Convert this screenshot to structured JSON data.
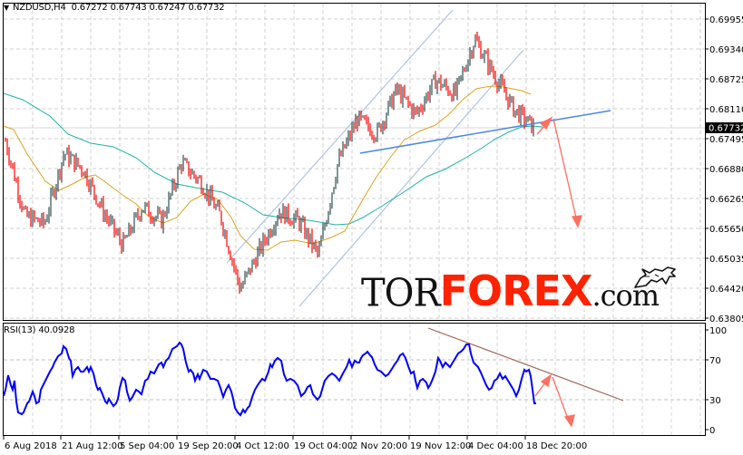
{
  "header": {
    "symbol": "NZDUSD,H4",
    "open": "0.67272",
    "high": "0.67743",
    "low": "0.67247",
    "close": "0.67732"
  },
  "rsi_header": "RSI(13) 40.0928",
  "logo": {
    "tor": "TOR",
    "forex": "FOREX",
    "com": ".com"
  },
  "colors": {
    "bull_candle": "#2f4f4f",
    "bear_candle": "#ff0000",
    "ma_fast": "#daa520",
    "ma_slow": "#20b2aa",
    "channel": "#b0c4de",
    "support_line": "#4a86e8",
    "forecast_arrow": "#ff6f61",
    "rsi_line": "#0000ff",
    "rsi_trendline": "#a0645a",
    "grid": "#c8c8c8",
    "price_tag_bg": "#000000",
    "price_tag_fg": "#ffffff"
  },
  "chart_data": [
    {
      "type": "line",
      "title": "NZDUSD,H4 0.67272 0.67743 0.67247 0.67732",
      "subtype": "candlestick",
      "xlabel": "",
      "ylabel": "",
      "x_ticks": [
        "6 Aug 2018",
        "21 Aug 12:00",
        "5 Sep 04:00",
        "19 Sep 20:00",
        "4 Oct 12:00",
        "19 Oct 04:00",
        "2 Nov 20:00",
        "19 Nov 12:00",
        "4 Dec 04:00",
        "18 Dec 20:00"
      ],
      "y_ticks": [
        "0.69955",
        "0.69340",
        "0.68725",
        "0.68110",
        "0.67495",
        "0.66880",
        "0.66265",
        "0.65650",
        "0.65035",
        "0.64420",
        "0.63805"
      ],
      "ylim": [
        0.63805,
        0.703
      ],
      "current_price": "0.67732",
      "grid": true,
      "series": [
        {
          "name": "Close (approx)",
          "x": [
            "6 Aug 2018",
            "10 Aug",
            "14 Aug",
            "21 Aug 12:00",
            "25 Aug",
            "30 Aug",
            "5 Sep 04:00",
            "10 Sep",
            "14 Sep",
            "19 Sep 20:00",
            "24 Sep",
            "29 Sep",
            "4 Oct 12:00",
            "9 Oct",
            "14 Oct",
            "19 Oct 04:00",
            "24 Oct",
            "29 Oct",
            "2 Nov 20:00",
            "8 Nov",
            "13 Nov",
            "19 Nov 12:00",
            "24 Nov",
            "29 Nov",
            "4 Dec 04:00",
            "9 Dec",
            "14 Dec",
            "18 Dec 20:00"
          ],
          "values": [
            0.6745,
            0.659,
            0.6575,
            0.672,
            0.6685,
            0.66,
            0.653,
            0.661,
            0.658,
            0.67,
            0.666,
            0.659,
            0.644,
            0.652,
            0.66,
            0.658,
            0.651,
            0.67,
            0.679,
            0.676,
            0.685,
            0.68,
            0.687,
            0.684,
            0.6955,
            0.688,
            0.681,
            0.6773
          ]
        },
        {
          "name": "MA fast (orange)",
          "values": [
            0.679,
            0.672,
            0.664,
            0.6665,
            0.669,
            0.665,
            0.658,
            0.659,
            0.661,
            0.666,
            0.663,
            0.657,
            0.654,
            0.656,
            0.6575,
            0.6565,
            0.657,
            0.662,
            0.67,
            0.675,
            0.679,
            0.6795,
            0.683,
            0.686,
            0.688,
            0.687,
            0.6855,
            0.6835
          ]
        },
        {
          "name": "MA slow (teal)",
          "values": [
            0.6845,
            0.682,
            0.679,
            0.676,
            0.6745,
            0.6735,
            0.67,
            0.6675,
            0.665,
            0.664,
            0.6635,
            0.663,
            0.661,
            0.659,
            0.6585,
            0.6585,
            0.658,
            0.66,
            0.663,
            0.666,
            0.669,
            0.671,
            0.6725,
            0.6745,
            0.676,
            0.677,
            0.6775,
            0.678
          ]
        }
      ],
      "annotations": [
        "Ascending channel (light blue) from early Oct to early Dec",
        "Support trendline (blue) from ~0.6755 (Nov) to ~0.6812 (late Dec)",
        "Forecast arrows (red): short bounce to ~0.6780 then decline toward ~0.6590"
      ]
    },
    {
      "type": "line",
      "title": "RSI(13) 40.0928",
      "y_ticks": [
        "100",
        "70",
        "30",
        "0"
      ],
      "ylim": [
        0,
        100
      ],
      "levels": [
        70,
        30
      ],
      "series": [
        {
          "name": "RSI(13)",
          "values": [
            45,
            60,
            28,
            25,
            50,
            78,
            60,
            72,
            55,
            38,
            35,
            45,
            55,
            40,
            30,
            48,
            68,
            62,
            70,
            80,
            55,
            50,
            42,
            40,
            62,
            22,
            30,
            52,
            60,
            75,
            60,
            50,
            55,
            40,
            50,
            68,
            73,
            50,
            45,
            78,
            62,
            52,
            40,
            45,
            32,
            38,
            55,
            40,
            32,
            60,
            40
          ]
        }
      ],
      "annotations": [
        "Descending RSI trendline from ~88 to ~35",
        "Forecast arrows: up to ~55 then down to ~15"
      ]
    }
  ]
}
